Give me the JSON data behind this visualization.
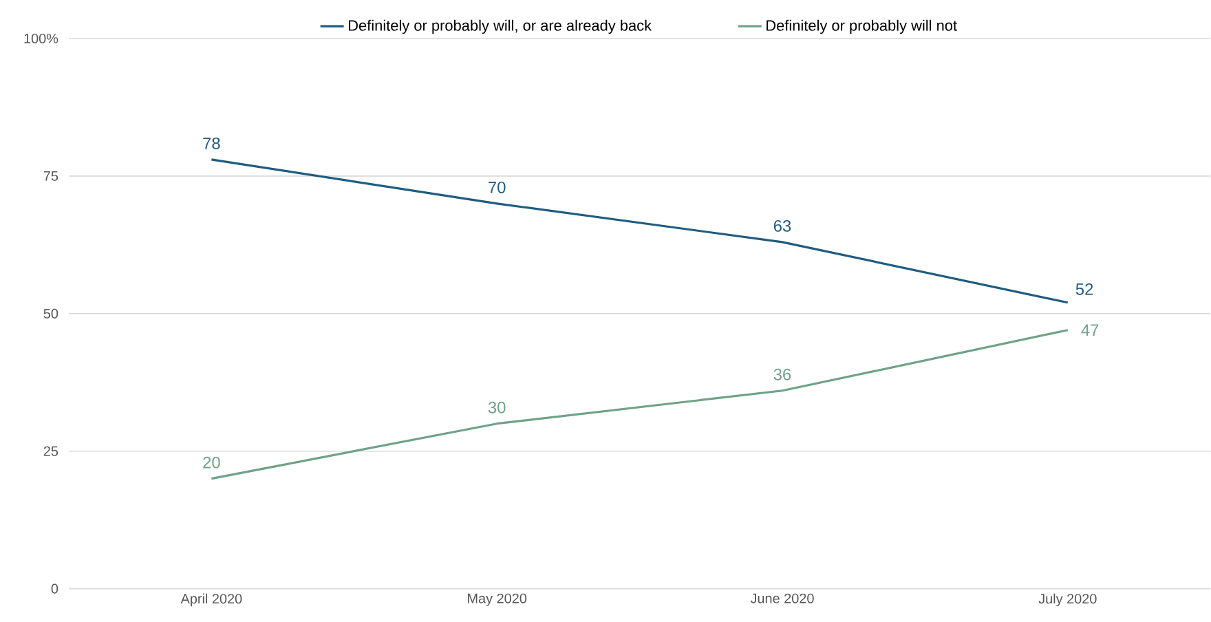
{
  "chart_data": {
    "type": "line",
    "categories": [
      "April 2020",
      "May 2020",
      "June 2020",
      "July 2020"
    ],
    "series": [
      {
        "name": "Definitely or probably will, or are already back",
        "color": "#1f5c80",
        "values": [
          78,
          70,
          63,
          52
        ]
      },
      {
        "name": "Definitely or probably will not",
        "color": "#6fa288",
        "values": [
          20,
          30,
          36,
          47
        ]
      }
    ],
    "ylim": [
      0,
      100
    ],
    "yticks": [
      0,
      25,
      50,
      75,
      {
        "value": 100,
        "label": "100%"
      }
    ],
    "grid": "y",
    "legend": "top",
    "data_labels": true,
    "marker": "none",
    "line_style": "solid"
  }
}
